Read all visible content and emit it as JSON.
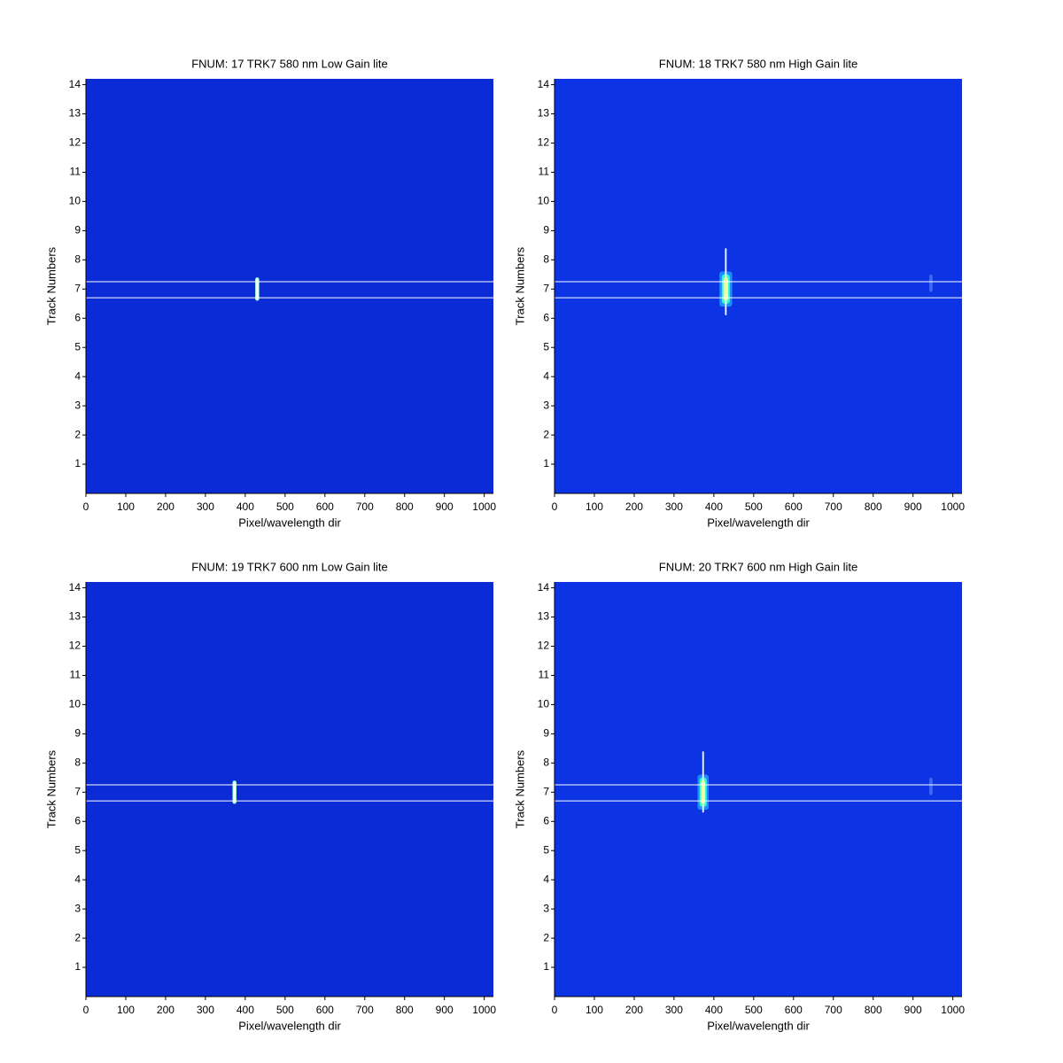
{
  "chart_data": [
    {
      "type": "heatmap",
      "title": "FNUM: 17 TRK7 580 nm Low Gain lite",
      "xlabel": "Pixel/wavelength dir",
      "ylabel": "Track Numbers",
      "xlim": [
        0,
        1023
      ],
      "ylim": [
        0,
        14.2
      ],
      "xticks": [
        0,
        100,
        200,
        300,
        400,
        500,
        600,
        700,
        800,
        900,
        1000
      ],
      "yticks": [
        1,
        2,
        3,
        4,
        5,
        6,
        7,
        8,
        9,
        10,
        11,
        12,
        13,
        14
      ],
      "background": "#0b2bd6",
      "track_bounds": [
        6.7,
        7.25
      ],
      "bound_color": "#ffffff",
      "features": [
        {
          "x": 430,
          "ymin": 6.6,
          "ymax": 7.4,
          "halfwidth": 5,
          "color": "#a0ffd0"
        },
        {
          "x": 430,
          "ymin": 6.65,
          "ymax": 7.35,
          "halfwidth": 3,
          "color": "#ffffff"
        }
      ]
    },
    {
      "type": "heatmap",
      "title": "FNUM: 18 TRK7 580 nm High Gain lite",
      "xlabel": "Pixel/wavelength dir",
      "ylabel": "Track Numbers",
      "xlim": [
        0,
        1023
      ],
      "ylim": [
        0,
        14.2
      ],
      "xticks": [
        0,
        100,
        200,
        300,
        400,
        500,
        600,
        700,
        800,
        900,
        1000
      ],
      "yticks": [
        1,
        2,
        3,
        4,
        5,
        6,
        7,
        8,
        9,
        10,
        11,
        12,
        13,
        14
      ],
      "background": "#0d34e4",
      "track_bounds": [
        6.7,
        7.25
      ],
      "bound_color": "#ffffff",
      "features": [
        {
          "x": 430,
          "ymin": 6.4,
          "ymax": 7.6,
          "halfwidth": 16,
          "color": "#1e8cff"
        },
        {
          "x": 430,
          "ymin": 6.5,
          "ymax": 7.5,
          "halfwidth": 10,
          "color": "#30ffc0"
        },
        {
          "x": 430,
          "ymin": 6.1,
          "ymax": 8.4,
          "halfwidth": 2,
          "color": "#ffffff"
        },
        {
          "x": 430,
          "ymin": 6.6,
          "ymax": 7.4,
          "halfwidth": 6,
          "color": "#f0ffb0"
        },
        {
          "x": 945,
          "ymin": 6.9,
          "ymax": 7.5,
          "halfwidth": 4,
          "color": "#3d6cf0"
        }
      ]
    },
    {
      "type": "heatmap",
      "title": "FNUM: 19 TRK7 600 nm Low Gain lite",
      "xlabel": "Pixel/wavelength dir",
      "ylabel": "Track Numbers",
      "xlim": [
        0,
        1023
      ],
      "ylim": [
        0,
        14.2
      ],
      "xticks": [
        0,
        100,
        200,
        300,
        400,
        500,
        600,
        700,
        800,
        900,
        1000
      ],
      "yticks": [
        1,
        2,
        3,
        4,
        5,
        6,
        7,
        8,
        9,
        10,
        11,
        12,
        13,
        14
      ],
      "background": "#0b2bd6",
      "track_bounds": [
        6.7,
        7.25
      ],
      "bound_color": "#ffffff",
      "features": [
        {
          "x": 373,
          "ymin": 6.6,
          "ymax": 7.4,
          "halfwidth": 5,
          "color": "#a0ffd0"
        },
        {
          "x": 373,
          "ymin": 6.65,
          "ymax": 7.35,
          "halfwidth": 3,
          "color": "#ffffff"
        }
      ]
    },
    {
      "type": "heatmap",
      "title": "FNUM: 20 TRK7 600 nm High Gain lite",
      "xlabel": "Pixel/wavelength dir",
      "ylabel": "Track Numbers",
      "xlim": [
        0,
        1023
      ],
      "ylim": [
        0,
        14.2
      ],
      "xticks": [
        0,
        100,
        200,
        300,
        400,
        500,
        600,
        700,
        800,
        900,
        1000
      ],
      "yticks": [
        1,
        2,
        3,
        4,
        5,
        6,
        7,
        8,
        9,
        10,
        11,
        12,
        13,
        14
      ],
      "background": "#0d34e4",
      "track_bounds": [
        6.7,
        7.25
      ],
      "bound_color": "#ffffff",
      "features": [
        {
          "x": 373,
          "ymin": 6.4,
          "ymax": 7.6,
          "halfwidth": 14,
          "color": "#1e8cff"
        },
        {
          "x": 373,
          "ymin": 6.5,
          "ymax": 7.5,
          "halfwidth": 9,
          "color": "#30ffc0"
        },
        {
          "x": 373,
          "ymin": 6.3,
          "ymax": 8.4,
          "halfwidth": 2,
          "color": "#ffffff"
        },
        {
          "x": 373,
          "ymin": 6.6,
          "ymax": 7.4,
          "halfwidth": 5,
          "color": "#f0ffb0"
        },
        {
          "x": 945,
          "ymin": 6.9,
          "ymax": 7.5,
          "halfwidth": 4,
          "color": "#3d6cf0"
        }
      ]
    }
  ]
}
